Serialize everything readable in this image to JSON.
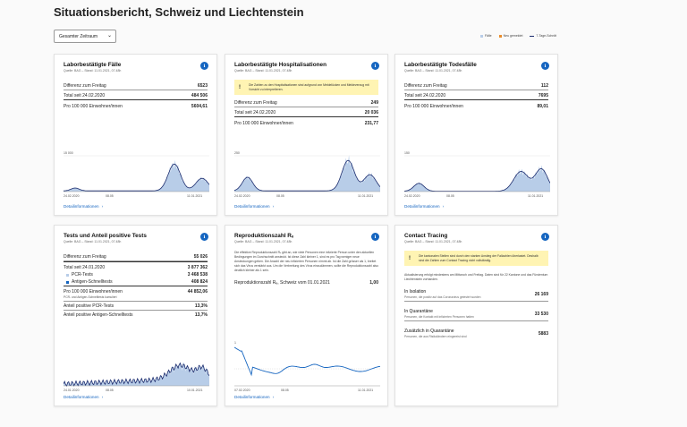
{
  "page": {
    "title": "Situationsbericht, Schweiz und Liechtenstein",
    "period_select": "Gesamter Zeitraum",
    "legend": [
      {
        "label": "Fälle",
        "color": "#b8cde8"
      },
      {
        "label": "Neu gemeldet",
        "color": "#e98c2c"
      },
      {
        "label": "7-Tage-Schnitt",
        "color": "#1a2b6d"
      }
    ]
  },
  "colors": {
    "accent": "#1565c0",
    "bars": "#b8cde8",
    "line": "#1a2b6d",
    "new": "#e98c2c",
    "warn": "#fff4b3"
  },
  "cards": {
    "cases": {
      "title": "Laborbestätigte Fälle",
      "source": "Quelle: BAG – Stand: 11.01.2021, 07.48h",
      "rows": [
        {
          "label": "Differenz zum Freitag",
          "value": "6523"
        },
        {
          "label": "Total seit 24.02.2020",
          "value": "484 506"
        },
        {
          "label": "Pro 100 000 Einwohner/innen",
          "value": "5604,61"
        }
      ],
      "y_tick": "15 000",
      "x_start": "24.02.2020",
      "x_mid": "08.05",
      "x_end": "11.01.2021",
      "link": "Detailinformationen"
    },
    "hosp": {
      "title": "Laborbestätigte Hospitalisationen",
      "source": "Quelle: BAG – Stand: 11.01.2021, 07.48h",
      "warning": "Die Zahlen zu den Hospitalisationen sind aufgrund von Meldelücken und Meldeverzug mit Vorsicht zu interpretieren.",
      "rows": [
        {
          "label": "Differenz zum Freitag",
          "value": "249"
        },
        {
          "label": "Total seit 24.02.2020",
          "value": "20 036"
        },
        {
          "label": "Pro 100 000 Einwohner/innen",
          "value": "231,77"
        }
      ],
      "y_tick": "250",
      "x_start": "24.02.2020",
      "x_mid": "08.05",
      "x_end": "11.01.2021",
      "link": "Detailinformationen"
    },
    "deaths": {
      "title": "Laborbestätigte Todesfälle",
      "source": "Quelle: BAG – Stand: 11.01.2021, 07.48h",
      "rows": [
        {
          "label": "Differenz zum Freitag",
          "value": "112"
        },
        {
          "label": "Total seit 24.02.2020",
          "value": "7695"
        },
        {
          "label": "Pro 100 000 Einwohner/innen",
          "value": "89,01"
        }
      ],
      "y_tick": "150",
      "x_start": "24.02.2020",
      "x_mid": "08.05",
      "x_end": "11.01.2021",
      "link": "Detailinformationen"
    },
    "tests": {
      "title": "Tests und Anteil positive Tests",
      "source": "Quelle: BAG – Stand: 11.01.2021, 07.48h",
      "diff": {
        "label": "Differenz zum Freitag",
        "value": "55 026"
      },
      "total": {
        "label": "Total seit 24.01.2020",
        "value": "3 877 362"
      },
      "pcr": {
        "label": "PCR-Tests",
        "value": "3 468 538",
        "color": "#b8cde8"
      },
      "antigen": {
        "label": "Antigen-Schnelltests",
        "value": "408 824",
        "color": "#1565c0"
      },
      "per100k": {
        "label": "Pro 100 000 Einwohner/innen",
        "value": "44 852,06"
      },
      "per100k_note": "PCR- und Antigen-Schnelltests kumuliert",
      "share_pcr": {
        "label": "Anteil positive PCR-Tests",
        "value": "13,3%"
      },
      "share_ag": {
        "label": "Anteil positive Antigen-Schnelltests",
        "value": "13,7%"
      },
      "x_start": "24.01.2020",
      "x_mid": "08.05",
      "x_end": "10.01.2021",
      "link": "Detailinformationen"
    },
    "repro": {
      "title": "Reproduktionszahl Rₑ",
      "source": "Quelle: BAG – Stand: 11.01.2021, 07.48h",
      "text": "Die effektive Reproduktionszahl Rₑ gibt an, wie viele Personen eine infizierte Person unter den aktuellen Bedingungen im Durchschnitt ansteckt. Ist diese Zahl kleiner 1, sind es pro Tag weniger neue Ansteckungen geben. Die Anzahl der neu infizierten Personen nimmt ab. Ist die Zahl grösser als 1, breitet sich das Virus verstärkt aus. Um die Verbreitung des Virus einzudämmen, sollte die Reproduktionszahl also deutlich kleiner als 1 sein.",
      "value_label": "Reproduktionszahl Rₑ, Schweiz vom 01.01.2021",
      "value": "1,00",
      "y_tick": "1",
      "x_start": "07.02.2020",
      "x_mid": "08.05",
      "x_end": "11.01.2021",
      "link": "Detailinformationen"
    },
    "tracing": {
      "title": "Contact Tracing",
      "source": "Quelle: BAG – Stand: 11.01.2021, 07.48h",
      "warning": "Die kantonalen Stellen sind durch den starken Anstieg der Fallzahlen überlastet. Deshalb sind die Zahlen zum Contact Tracing nicht vollständig.",
      "text": "Aktualisierung erfolgt mindestens am Mittwoch und Freitag. Daten sind für 22 Kantone und das Fürstentum Liechtenstein vorhanden.",
      "items": [
        {
          "label": "In Isolation",
          "sub": "Personen, die positiv auf das Coronavirus getestet wurden",
          "value": "26 169"
        },
        {
          "label": "In Quarantäne",
          "sub": "Personen, die Kontakt mit infizierten Personen hatten",
          "value": "33 530"
        },
        {
          "label": "Zusätzlich in Quarantäne",
          "sub": "Personen, die aus Risikoländern eingereist sind",
          "value": "5883"
        }
      ]
    }
  }
}
